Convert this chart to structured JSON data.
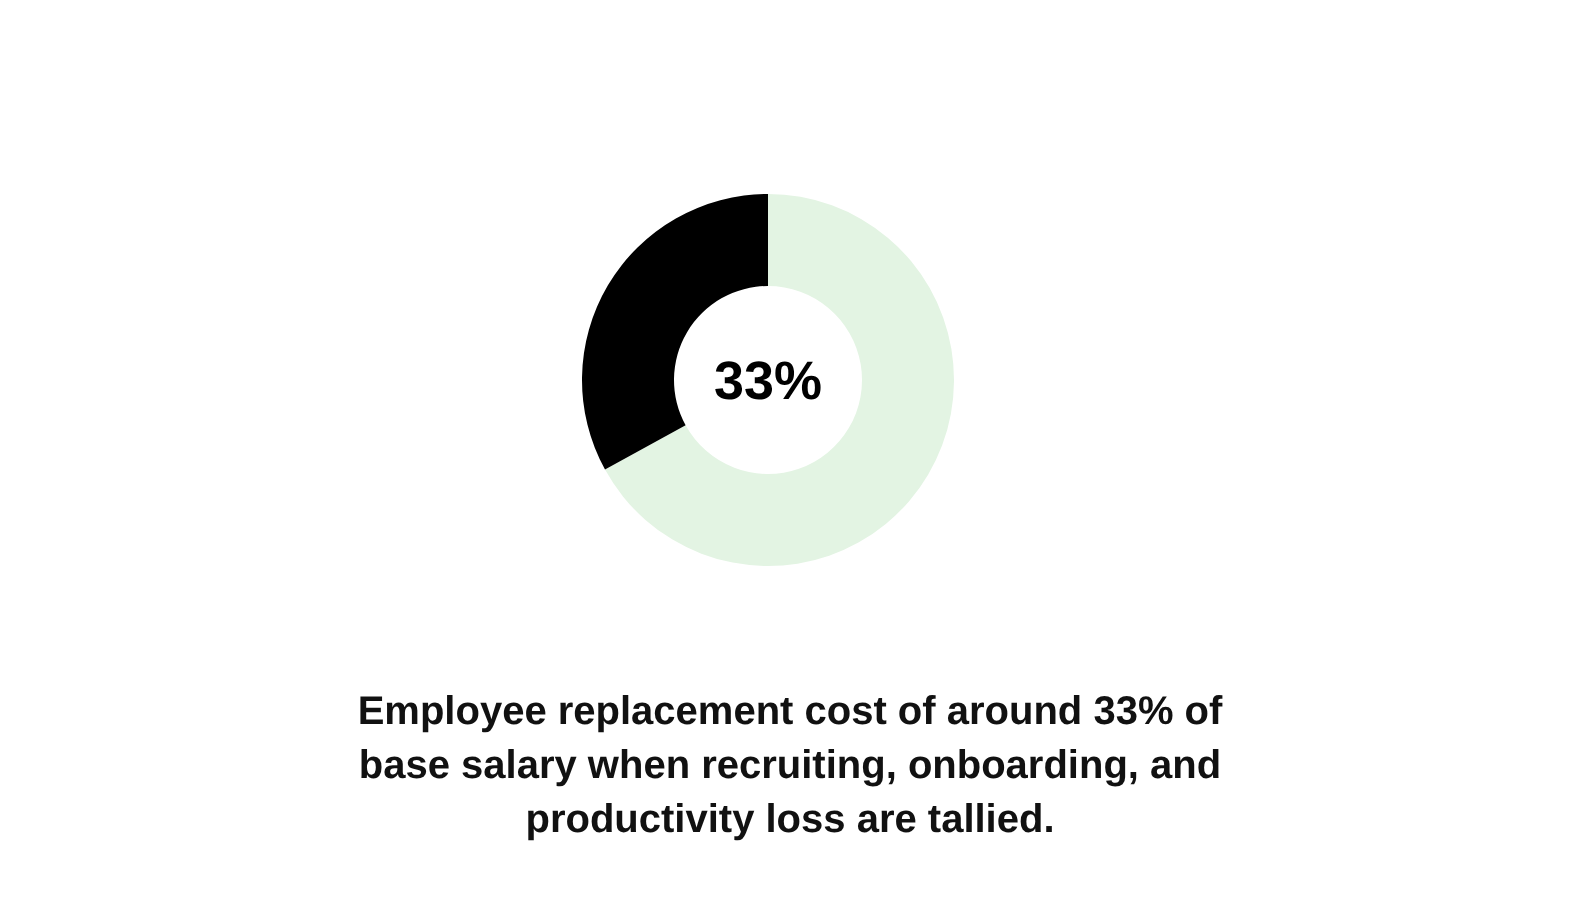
{
  "chart_data": {
    "type": "donut",
    "title": "Employee replacement cost of around 33% of base salary when recruiting, onboarding, and productivity loss are tallied.",
    "categories": [
      null,
      null
    ],
    "values": [
      67,
      33
    ],
    "colors": [
      "#e3f4e3",
      "#000000"
    ],
    "annotations": [
      "33%"
    ]
  }
}
